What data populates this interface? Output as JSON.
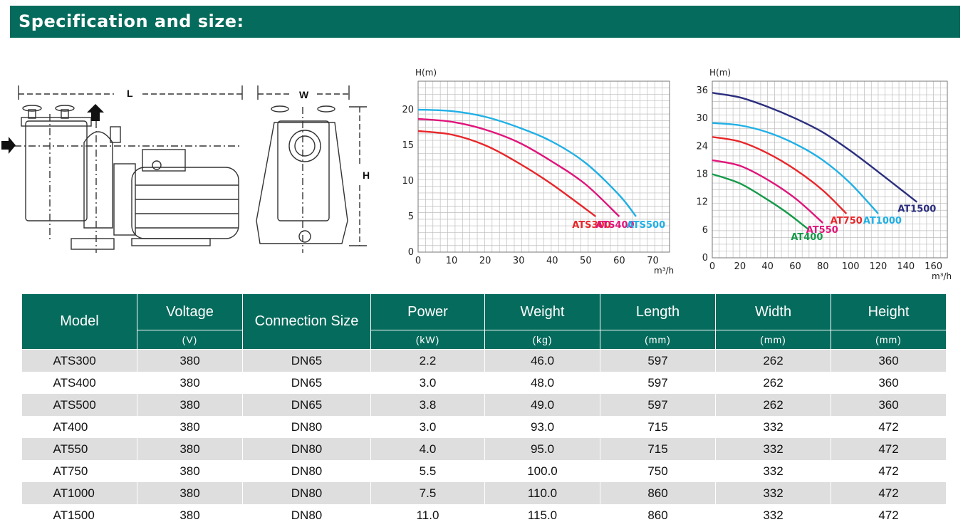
{
  "header": {
    "title": "Specification and size:"
  },
  "drawing": {
    "label_length": "L",
    "label_width": "W",
    "label_height": "H"
  },
  "colors": {
    "brand": "#056b5c"
  },
  "chart_data": [
    {
      "type": "line",
      "ylabel": "H(m)",
      "xlabel": "m³/h",
      "xlim": [
        0,
        75
      ],
      "ylim": [
        0,
        24
      ],
      "x_ticks": [
        0,
        10,
        20,
        30,
        40,
        50,
        60,
        70
      ],
      "y_ticks": [
        0,
        5,
        10,
        15,
        20
      ],
      "grid": true,
      "series": [
        {
          "name": "ATS300",
          "color": "#e8262a",
          "x": [
            0,
            10,
            20,
            30,
            40,
            53
          ],
          "y": [
            17.0,
            16.5,
            15.0,
            12.5,
            9.5,
            5.0
          ]
        },
        {
          "name": "ATS400",
          "color": "#e0157a",
          "x": [
            0,
            10,
            20,
            30,
            40,
            50,
            60
          ],
          "y": [
            18.7,
            18.3,
            17.2,
            15.4,
            12.7,
            9.5,
            5.0
          ]
        },
        {
          "name": "ATS500",
          "color": "#20b0e6",
          "x": [
            0,
            10,
            20,
            30,
            40,
            50,
            60,
            65
          ],
          "y": [
            20.0,
            19.8,
            19.0,
            17.5,
            15.5,
            12.5,
            8.0,
            5.0
          ]
        }
      ]
    },
    {
      "type": "line",
      "ylabel": "H(m)",
      "xlabel": "m³/h",
      "xlim": [
        0,
        170
      ],
      "ylim": [
        0,
        38
      ],
      "x_ticks": [
        0,
        20,
        40,
        60,
        80,
        100,
        120,
        140,
        160
      ],
      "y_ticks": [
        0,
        6,
        12,
        18,
        24,
        30,
        36
      ],
      "grid": true,
      "series": [
        {
          "name": "AT400",
          "color": "#159a4a",
          "x": [
            0,
            20,
            40,
            55,
            70
          ],
          "y": [
            18.0,
            16.0,
            12.5,
            9.5,
            6.0
          ]
        },
        {
          "name": "AT550",
          "color": "#e0157a",
          "x": [
            0,
            20,
            40,
            60,
            80
          ],
          "y": [
            21.0,
            19.8,
            16.8,
            12.8,
            7.5
          ]
        },
        {
          "name": "AT750",
          "color": "#e8262a",
          "x": [
            0,
            20,
            40,
            60,
            80,
            97
          ],
          "y": [
            26.0,
            25.0,
            22.5,
            19.0,
            14.5,
            9.5
          ]
        },
        {
          "name": "AT1000",
          "color": "#20b0e6",
          "x": [
            0,
            20,
            40,
            60,
            80,
            100,
            120
          ],
          "y": [
            29.0,
            28.5,
            27.0,
            24.5,
            21.0,
            16.0,
            9.5
          ]
        },
        {
          "name": "AT1500",
          "color": "#2b2e7e",
          "x": [
            0,
            20,
            40,
            60,
            80,
            100,
            120,
            148
          ],
          "y": [
            35.5,
            34.5,
            32.5,
            30.0,
            27.0,
            23.0,
            18.5,
            12.0
          ]
        }
      ]
    }
  ],
  "table": {
    "headers": [
      {
        "name": "Model",
        "unit": ""
      },
      {
        "name": "Voltage",
        "unit": "(V)"
      },
      {
        "name": "Connection Size",
        "unit": ""
      },
      {
        "name": "Power",
        "unit": "(kW)"
      },
      {
        "name": "Weight",
        "unit": "(kg)"
      },
      {
        "name": "Length",
        "unit": "(mm)"
      },
      {
        "name": "Width",
        "unit": "(mm)"
      },
      {
        "name": "Height",
        "unit": "(mm)"
      }
    ],
    "rows": [
      [
        "ATS300",
        "380",
        "DN65",
        "2.2",
        "46.0",
        "597",
        "262",
        "360"
      ],
      [
        "ATS400",
        "380",
        "DN65",
        "3.0",
        "48.0",
        "597",
        "262",
        "360"
      ],
      [
        "ATS500",
        "380",
        "DN65",
        "3.8",
        "49.0",
        "597",
        "262",
        "360"
      ],
      [
        "AT400",
        "380",
        "DN80",
        "3.0",
        "93.0",
        "715",
        "332",
        "472"
      ],
      [
        "AT550",
        "380",
        "DN80",
        "4.0",
        "95.0",
        "715",
        "332",
        "472"
      ],
      [
        "AT750",
        "380",
        "DN80",
        "5.5",
        "100.0",
        "750",
        "332",
        "472"
      ],
      [
        "AT1000",
        "380",
        "DN80",
        "7.5",
        "110.0",
        "860",
        "332",
        "472"
      ],
      [
        "AT1500",
        "380",
        "DN80",
        "11.0",
        "115.0",
        "860",
        "332",
        "472"
      ]
    ]
  }
}
